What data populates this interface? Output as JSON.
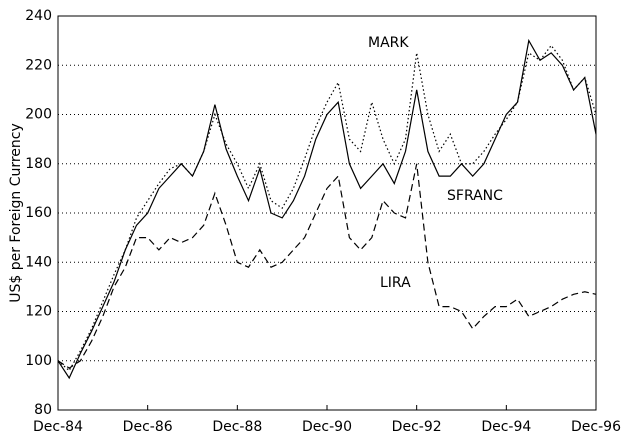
{
  "chart_data": {
    "type": "line",
    "y_label": "US$ per Foreign Currency",
    "annotations": [
      "MARK",
      "SFRANC",
      "LIRA"
    ],
    "categories": [
      "Dec-84",
      null,
      null,
      null,
      null,
      null,
      null,
      null,
      "Dec-86",
      null,
      null,
      null,
      null,
      null,
      null,
      null,
      "Dec-88",
      null,
      null,
      null,
      null,
      null,
      null,
      null,
      "Dec-90",
      null,
      null,
      null,
      null,
      null,
      null,
      null,
      "Dec-92",
      null,
      null,
      null,
      null,
      null,
      null,
      null,
      "Dec-94",
      null,
      null,
      null,
      null,
      null,
      null,
      null,
      "Dec-96"
    ],
    "series": [
      {
        "name": "SFRANC",
        "color": "#000000",
        "style": "solid",
        "values": [
          100,
          93,
          103,
          112,
          122,
          132,
          145,
          155,
          160,
          170,
          175,
          180,
          175,
          185,
          204,
          186,
          175,
          165,
          178,
          160,
          158,
          165,
          175,
          190,
          200,
          205,
          180,
          170,
          175,
          180,
          172,
          185,
          210,
          185,
          175,
          175,
          180,
          175,
          180,
          190,
          200,
          205,
          230,
          222,
          225,
          220,
          210,
          215,
          192
        ]
      },
      {
        "name": "MARK",
        "color": "#000000",
        "style": "dotted",
        "values": [
          100,
          96,
          104,
          113,
          124,
          135,
          145,
          158,
          165,
          172,
          178,
          180,
          175,
          185,
          200,
          188,
          180,
          170,
          180,
          165,
          162,
          170,
          182,
          195,
          205,
          213,
          190,
          185,
          205,
          190,
          180,
          190,
          225,
          200,
          185,
          192,
          180,
          180,
          185,
          192,
          198,
          205,
          225,
          222,
          228,
          222,
          210,
          215,
          200
        ]
      },
      {
        "name": "LIRA",
        "color": "#000000",
        "style": "dashed",
        "values": [
          100,
          97,
          100,
          108,
          118,
          130,
          138,
          150,
          150,
          145,
          150,
          148,
          150,
          155,
          168,
          155,
          140,
          138,
          145,
          138,
          140,
          145,
          150,
          160,
          170,
          175,
          150,
          145,
          150,
          165,
          160,
          158,
          180,
          140,
          122,
          122,
          120,
          113,
          118,
          122,
          122,
          125,
          118,
          120,
          122,
          125,
          127,
          128,
          127
        ]
      }
    ],
    "ylim": [
      80,
      240
    ],
    "yticks": [
      80,
      100,
      120,
      140,
      160,
      180,
      200,
      220,
      240
    ],
    "grid": true
  }
}
